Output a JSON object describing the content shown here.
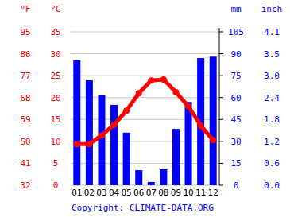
{
  "chart_data": {
    "type": "bar",
    "categories": [
      "01",
      "02",
      "03",
      "04",
      "05",
      "06",
      "07",
      "08",
      "09",
      "10",
      "11",
      "12"
    ],
    "series": [
      {
        "name": "°C",
        "type": "line",
        "color": "#ff0000",
        "marker": "circle",
        "axis": "y",
        "values": [
          9.4,
          9.4,
          11.4,
          13.8,
          17.0,
          21.0,
          23.9,
          24.1,
          21.2,
          18.0,
          13.6,
          10.3
        ]
      },
      {
        "name": "mm",
        "type": "bar",
        "color": "#0000ff",
        "axis": "y2",
        "values": [
          85.4,
          71.8,
          61.5,
          55.0,
          36.0,
          10.3,
          2.2,
          10.9,
          38.6,
          57.0,
          87.0,
          88.0
        ]
      }
    ],
    "y_label": "°C",
    "y_alt_label": "°F",
    "y2_label": "mm",
    "y2_alt_label": "inch",
    "ylim": [
      0,
      35
    ],
    "yticks": [
      0,
      5,
      10,
      15,
      20,
      25,
      30,
      35
    ],
    "yticks_alt": [
      {
        "value": 0,
        "label": "32"
      },
      {
        "value": 5,
        "label": "41"
      },
      {
        "value": 10,
        "label": "50"
      },
      {
        "value": 15,
        "label": "59"
      },
      {
        "value": 20,
        "label": "68"
      },
      {
        "value": 25,
        "label": "77"
      },
      {
        "value": 30,
        "label": "86"
      },
      {
        "value": 35,
        "label": "95"
      }
    ],
    "y2lim": [
      0,
      105
    ],
    "y2ticks": [
      0,
      15,
      30,
      45,
      60,
      75,
      90,
      105
    ],
    "y2ticks_alt": [
      {
        "value": 0,
        "label": "0.0"
      },
      {
        "value": 15,
        "label": "0.6"
      },
      {
        "value": 30,
        "label": "1.2"
      },
      {
        "value": 45,
        "label": "1.8"
      },
      {
        "value": 60,
        "label": "2.4"
      },
      {
        "value": 75,
        "label": "3.0"
      },
      {
        "value": 90,
        "label": "3.5"
      },
      {
        "value": 105,
        "label": "4.1"
      }
    ],
    "grid": true,
    "source": "Copyright: CLIMATE-DATA.ORG"
  }
}
